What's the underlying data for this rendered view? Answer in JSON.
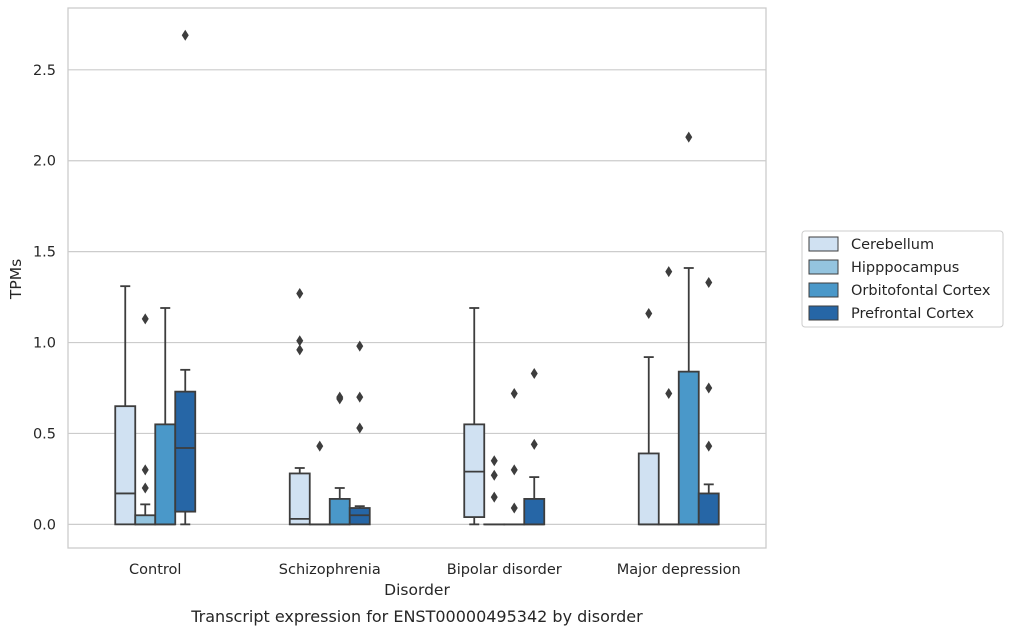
{
  "chart_data": {
    "type": "box",
    "caption": "Transcript expression for ENST00000495342 by disorder",
    "xlabel": "Disorder",
    "ylabel": "TPMs",
    "ylim": [
      -0.13,
      2.84
    ],
    "yticks": [
      0.0,
      0.5,
      1.0,
      1.5,
      2.0,
      2.5
    ],
    "ytick_labels": [
      "0.0",
      "0.5",
      "1.0",
      "1.5",
      "2.0",
      "2.5"
    ],
    "grid": "horizontal",
    "legend_placement": "right",
    "categories": [
      "Control",
      "Schizophrenia",
      "Bipolar disorder",
      "Major depression"
    ],
    "series": [
      {
        "name": "Cerebellum",
        "color": "#d0e1f2",
        "boxes": [
          {
            "q1": 0.0,
            "median": 0.17,
            "q3": 0.65,
            "whislo": 0.0,
            "whishi": 1.31,
            "fliers": []
          },
          {
            "q1": 0.0,
            "median": 0.03,
            "q3": 0.28,
            "whislo": 0.0,
            "whishi": 0.31,
            "fliers": [
              0.96,
              1.01,
              1.27
            ]
          },
          {
            "q1": 0.04,
            "median": 0.29,
            "q3": 0.55,
            "whislo": 0.0,
            "whishi": 1.19,
            "fliers": []
          },
          {
            "q1": 0.0,
            "median": 0.0,
            "q3": 0.39,
            "whislo": 0.0,
            "whishi": 0.92,
            "fliers": [
              1.16
            ]
          }
        ]
      },
      {
        "name": "Hipppocampus",
        "color": "#94c4df",
        "boxes": [
          {
            "q1": 0.0,
            "median": 0.0,
            "q3": 0.05,
            "whislo": 0.0,
            "whishi": 0.11,
            "fliers": [
              0.2,
              0.3,
              1.13
            ]
          },
          {
            "q1": 0.0,
            "median": 0.0,
            "q3": 0.0,
            "whislo": 0.0,
            "whishi": 0.0,
            "fliers": [
              0.43
            ]
          },
          {
            "q1": 0.0,
            "median": 0.0,
            "q3": 0.0,
            "whislo": 0.0,
            "whishi": 0.0,
            "fliers": [
              0.15,
              0.27,
              0.35
            ]
          },
          {
            "q1": 0.0,
            "median": 0.0,
            "q3": 0.0,
            "whislo": 0.0,
            "whishi": 0.0,
            "fliers": [
              0.72,
              1.39
            ]
          }
        ]
      },
      {
        "name": "Orbitofontal Cortex",
        "color": "#4a98c9",
        "boxes": [
          {
            "q1": 0.0,
            "median": 0.0,
            "q3": 0.55,
            "whislo": 0.0,
            "whishi": 1.19,
            "fliers": []
          },
          {
            "q1": 0.0,
            "median": 0.0,
            "q3": 0.14,
            "whislo": 0.0,
            "whishi": 0.2,
            "fliers": [
              0.69,
              0.7
            ]
          },
          {
            "q1": 0.0,
            "median": 0.0,
            "q3": 0.0,
            "whislo": 0.0,
            "whishi": 0.0,
            "fliers": [
              0.09,
              0.3,
              0.72
            ]
          },
          {
            "q1": 0.0,
            "median": 0.0,
            "q3": 0.84,
            "whislo": 0.0,
            "whishi": 1.41,
            "fliers": [
              2.13
            ]
          }
        ]
      },
      {
        "name": "Prefrontal Cortex",
        "color": "#2666a6",
        "boxes": [
          {
            "q1": 0.07,
            "median": 0.42,
            "q3": 0.73,
            "whislo": 0.0,
            "whishi": 0.85,
            "fliers": [
              2.69
            ]
          },
          {
            "q1": 0.0,
            "median": 0.05,
            "q3": 0.09,
            "whislo": 0.0,
            "whishi": 0.1,
            "fliers": [
              0.53,
              0.7,
              0.98
            ]
          },
          {
            "q1": 0.0,
            "median": 0.0,
            "q3": 0.14,
            "whislo": 0.0,
            "whishi": 0.26,
            "fliers": [
              0.44,
              0.83
            ]
          },
          {
            "q1": 0.0,
            "median": 0.0,
            "q3": 0.17,
            "whislo": 0.0,
            "whishi": 0.22,
            "fliers": [
              0.43,
              0.75,
              1.33
            ]
          }
        ]
      }
    ]
  }
}
